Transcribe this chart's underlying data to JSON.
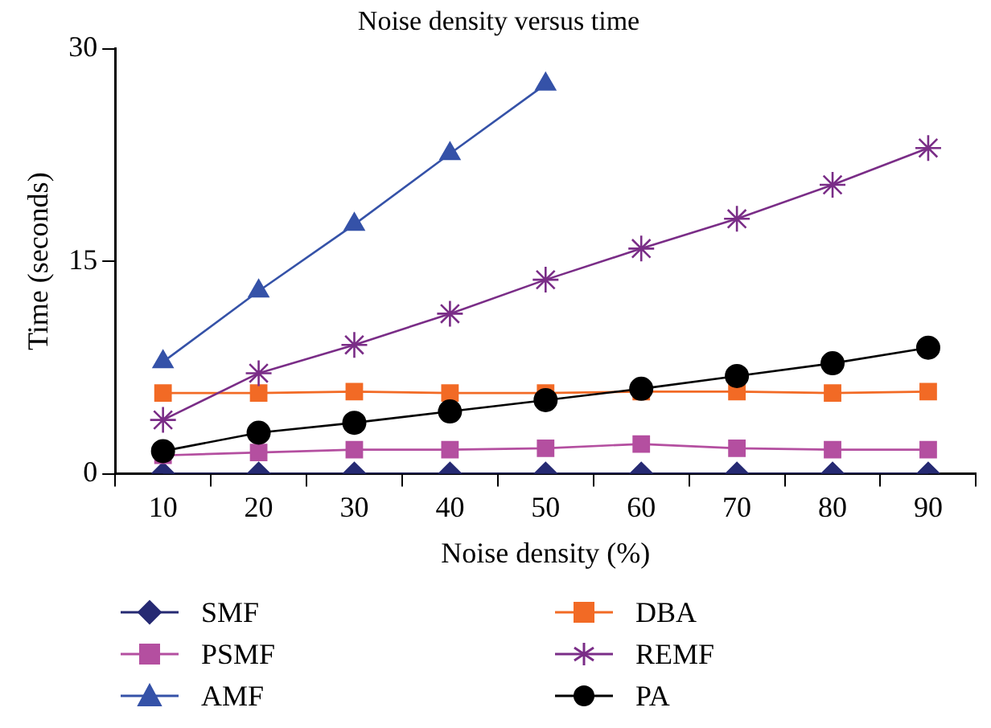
{
  "chart_data": {
    "type": "line",
    "title": "Noise density versus time",
    "xlabel": "Noise density (%)",
    "ylabel": "Time (seconds)",
    "categories": [
      "10",
      "20",
      "30",
      "40",
      "50",
      "60",
      "70",
      "80",
      "90"
    ],
    "ylim": [
      0,
      30
    ],
    "yticks": [
      0,
      15,
      30
    ],
    "grid": false,
    "legend": "bottom",
    "line_style": "solid",
    "series": [
      {
        "name": "SMF",
        "color": "#262a73",
        "marker": "diamond",
        "values": [
          0,
          0,
          0,
          0,
          0,
          0,
          0,
          0,
          0
        ]
      },
      {
        "name": "PSMF",
        "color": "#b44fa0",
        "marker": "square",
        "values": [
          1.3,
          1.5,
          1.7,
          1.7,
          1.8,
          2.1,
          1.8,
          1.7,
          1.7
        ]
      },
      {
        "name": "AMF",
        "color": "#3552a8",
        "marker": "triangle",
        "values": [
          7.9,
          12.9,
          17.6,
          22.6,
          27.5,
          null,
          null,
          null,
          null
        ]
      },
      {
        "name": "DBA",
        "color": "#f26a25",
        "marker": "square",
        "values": [
          5.7,
          5.7,
          5.8,
          5.7,
          5.7,
          5.8,
          5.8,
          5.7,
          5.8
        ]
      },
      {
        "name": "REMF",
        "color": "#7a2d87",
        "marker": "cross",
        "values": [
          3.8,
          7.1,
          9.1,
          11.3,
          13.7,
          15.9,
          18.0,
          20.4,
          23.0
        ]
      },
      {
        "name": "PA",
        "color": "#000000",
        "marker": "circle",
        "values": [
          1.6,
          2.9,
          3.6,
          4.4,
          5.2,
          6.0,
          6.9,
          7.8,
          8.9
        ]
      }
    ]
  }
}
